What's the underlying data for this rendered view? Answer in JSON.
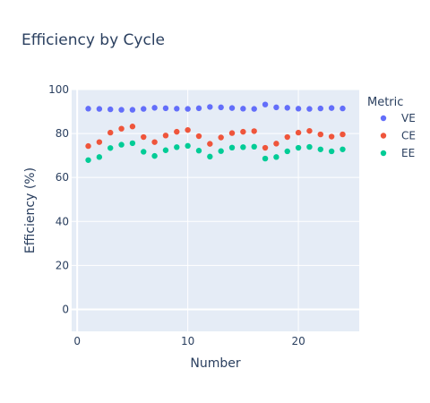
{
  "chart_data": {
    "type": "scatter",
    "title": "Efficiency by Cycle",
    "xlabel": "Number",
    "ylabel": "Efficiency (%)",
    "legend_title": "Metric",
    "legend_position": "right",
    "xlim": [
      -0.5,
      25.5
    ],
    "ylim": [
      -10,
      100
    ],
    "xticks": [
      0,
      10,
      20
    ],
    "yticks": [
      0,
      20,
      40,
      60,
      80,
      100
    ],
    "grid": true,
    "x": [
      1,
      2,
      3,
      4,
      5,
      6,
      7,
      8,
      9,
      10,
      11,
      12,
      13,
      14,
      15,
      16,
      17,
      18,
      19,
      20,
      21,
      22,
      23,
      24
    ],
    "series": [
      {
        "name": "VE",
        "color": "#636efa",
        "values": [
          91.3,
          91.2,
          91.0,
          90.8,
          90.8,
          91.2,
          91.7,
          91.5,
          91.3,
          91.2,
          91.5,
          92.1,
          91.9,
          91.6,
          91.3,
          91.2,
          93.2,
          91.9,
          91.7,
          91.3,
          91.2,
          91.4,
          91.6,
          91.4
        ]
      },
      {
        "name": "CE",
        "color": "#ef553b",
        "values": [
          74.3,
          76.1,
          80.4,
          82.2,
          83.2,
          78.4,
          76.1,
          79.1,
          80.8,
          81.6,
          78.8,
          75.3,
          78.2,
          80.2,
          80.8,
          81.1,
          73.5,
          75.4,
          78.4,
          80.4,
          81.2,
          79.6,
          78.6,
          79.6
        ]
      },
      {
        "name": "EE",
        "color": "#00cc96",
        "values": [
          67.9,
          69.3,
          73.4,
          74.9,
          75.6,
          71.7,
          69.8,
          72.4,
          73.8,
          74.4,
          72.2,
          69.5,
          72.0,
          73.6,
          73.8,
          74.0,
          68.6,
          69.3,
          71.9,
          73.5,
          73.9,
          72.8,
          71.9,
          72.8
        ]
      }
    ]
  }
}
